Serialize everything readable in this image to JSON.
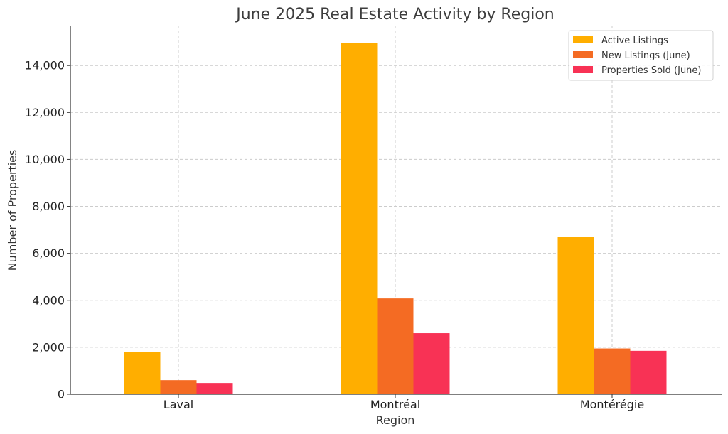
{
  "chart_data": {
    "type": "bar",
    "title": "June 2025 Real Estate Activity by Region",
    "xlabel": "Region",
    "ylabel": "Number of Properties",
    "categories": [
      "Laval",
      "Montréal",
      "Montérégie"
    ],
    "series": [
      {
        "name": "Active Listings",
        "color": "#ffae00",
        "values": [
          1800,
          14950,
          6700
        ]
      },
      {
        "name": "New Listings (June)",
        "color": "#f46b23",
        "values": [
          600,
          4080,
          1950
        ]
      },
      {
        "name": "Properties Sold (June)",
        "color": "#f83255",
        "values": [
          480,
          2600,
          1850
        ]
      }
    ],
    "ylim": [
      0,
      15700
    ],
    "yticks": [
      0,
      2000,
      4000,
      6000,
      8000,
      10000,
      12000,
      14000
    ],
    "ytick_labels": [
      "0",
      "2,000",
      "4,000",
      "6,000",
      "8,000",
      "10,000",
      "12,000",
      "14,000"
    ],
    "grid": true,
    "legend_position": "top-right"
  }
}
